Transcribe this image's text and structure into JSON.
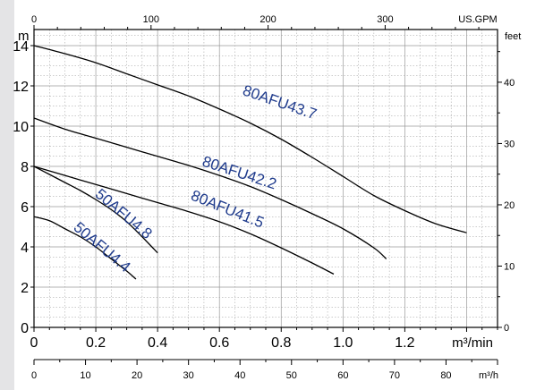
{
  "chart_data": {
    "type": "line",
    "title": "",
    "axes": {
      "bottom_m3min": {
        "unit_label": "m³/min",
        "ticks": [
          "0",
          "0.2",
          "0.4",
          "0.6",
          "0.8",
          "1.0",
          "1.2"
        ],
        "range": [
          0,
          1.5
        ]
      },
      "bottom_m3h": {
        "unit_label": "m³/h",
        "ticks": [
          "0",
          "10",
          "20",
          "30",
          "40",
          "50",
          "60",
          "70",
          "80"
        ],
        "range": [
          0,
          90
        ]
      },
      "top_usgpm": {
        "unit_label": "US.GPM",
        "ticks": [
          "0",
          "100",
          "200",
          "300"
        ],
        "range": [
          0,
          396
        ]
      },
      "left_m": {
        "unit_label": "m",
        "ticks": [
          "0",
          "2",
          "4",
          "6",
          "8",
          "10",
          "12",
          "14"
        ],
        "range": [
          0,
          14.8
        ]
      },
      "right_feet": {
        "unit_label": "feet",
        "ticks": [
          "0",
          "10",
          "20",
          "30",
          "40"
        ],
        "range": [
          0,
          48.6
        ]
      }
    },
    "grid": true,
    "series": [
      {
        "name": "80AFU43.7",
        "color": "#000000",
        "x": [
          0,
          0.1,
          0.2,
          0.3,
          0.4,
          0.5,
          0.6,
          0.7,
          0.8,
          0.9,
          1.0,
          1.1,
          1.2,
          1.3,
          1.4
        ],
        "y": [
          14.0,
          13.6,
          13.15,
          12.6,
          12.05,
          11.5,
          10.85,
          10.15,
          9.35,
          8.45,
          7.5,
          6.55,
          5.8,
          5.15,
          4.7
        ]
      },
      {
        "name": "80AFU42.2",
        "color": "#000000",
        "x": [
          0,
          0.1,
          0.2,
          0.3,
          0.4,
          0.5,
          0.6,
          0.7,
          0.8,
          0.9,
          1.0,
          1.1,
          1.14
        ],
        "y": [
          10.4,
          9.85,
          9.4,
          8.95,
          8.5,
          8.05,
          7.55,
          7.0,
          6.35,
          5.65,
          4.9,
          3.95,
          3.4
        ]
      },
      {
        "name": "80AFU41.5",
        "color": "#000000",
        "x": [
          0,
          0.1,
          0.2,
          0.3,
          0.4,
          0.5,
          0.6,
          0.7,
          0.8,
          0.9,
          0.97
        ],
        "y": [
          8.0,
          7.55,
          7.1,
          6.65,
          6.2,
          5.75,
          5.25,
          4.65,
          3.95,
          3.2,
          2.65
        ]
      },
      {
        "name": "50AFU4.8",
        "color": "#000000",
        "x": [
          0,
          0.05,
          0.1,
          0.15,
          0.2,
          0.25,
          0.3,
          0.35,
          0.4
        ],
        "y": [
          8.0,
          7.6,
          7.2,
          6.8,
          6.35,
          5.85,
          5.25,
          4.5,
          3.7
        ]
      },
      {
        "name": "50AFU4.4",
        "color": "#000000",
        "x": [
          0,
          0.05,
          0.1,
          0.15,
          0.2,
          0.25,
          0.3,
          0.33
        ],
        "y": [
          5.5,
          5.3,
          4.9,
          4.5,
          4.0,
          3.4,
          2.8,
          2.4
        ]
      }
    ],
    "labels": [
      {
        "text": "80AFU43.7",
        "x": 0.79,
        "y": 10.95,
        "angle": 19,
        "color": "#1f3b8c"
      },
      {
        "text": "80AFU42.2",
        "x": 0.66,
        "y": 7.45,
        "angle": 18,
        "color": "#1f3b8c"
      },
      {
        "text": "80AFU41.5",
        "x": 0.62,
        "y": 5.65,
        "angle": 22,
        "color": "#1f3b8c"
      },
      {
        "text": "50AFU4.8",
        "x": 0.28,
        "y": 5.45,
        "angle": 40,
        "color": "#1f3b8c"
      },
      {
        "text": "50AFU4.4",
        "x": 0.21,
        "y": 3.8,
        "angle": 40,
        "color": "#1f3b8c"
      }
    ],
    "colors": {
      "label": "#1f3b8c",
      "grid": "#9a9a9a",
      "curve": "#000000"
    }
  }
}
